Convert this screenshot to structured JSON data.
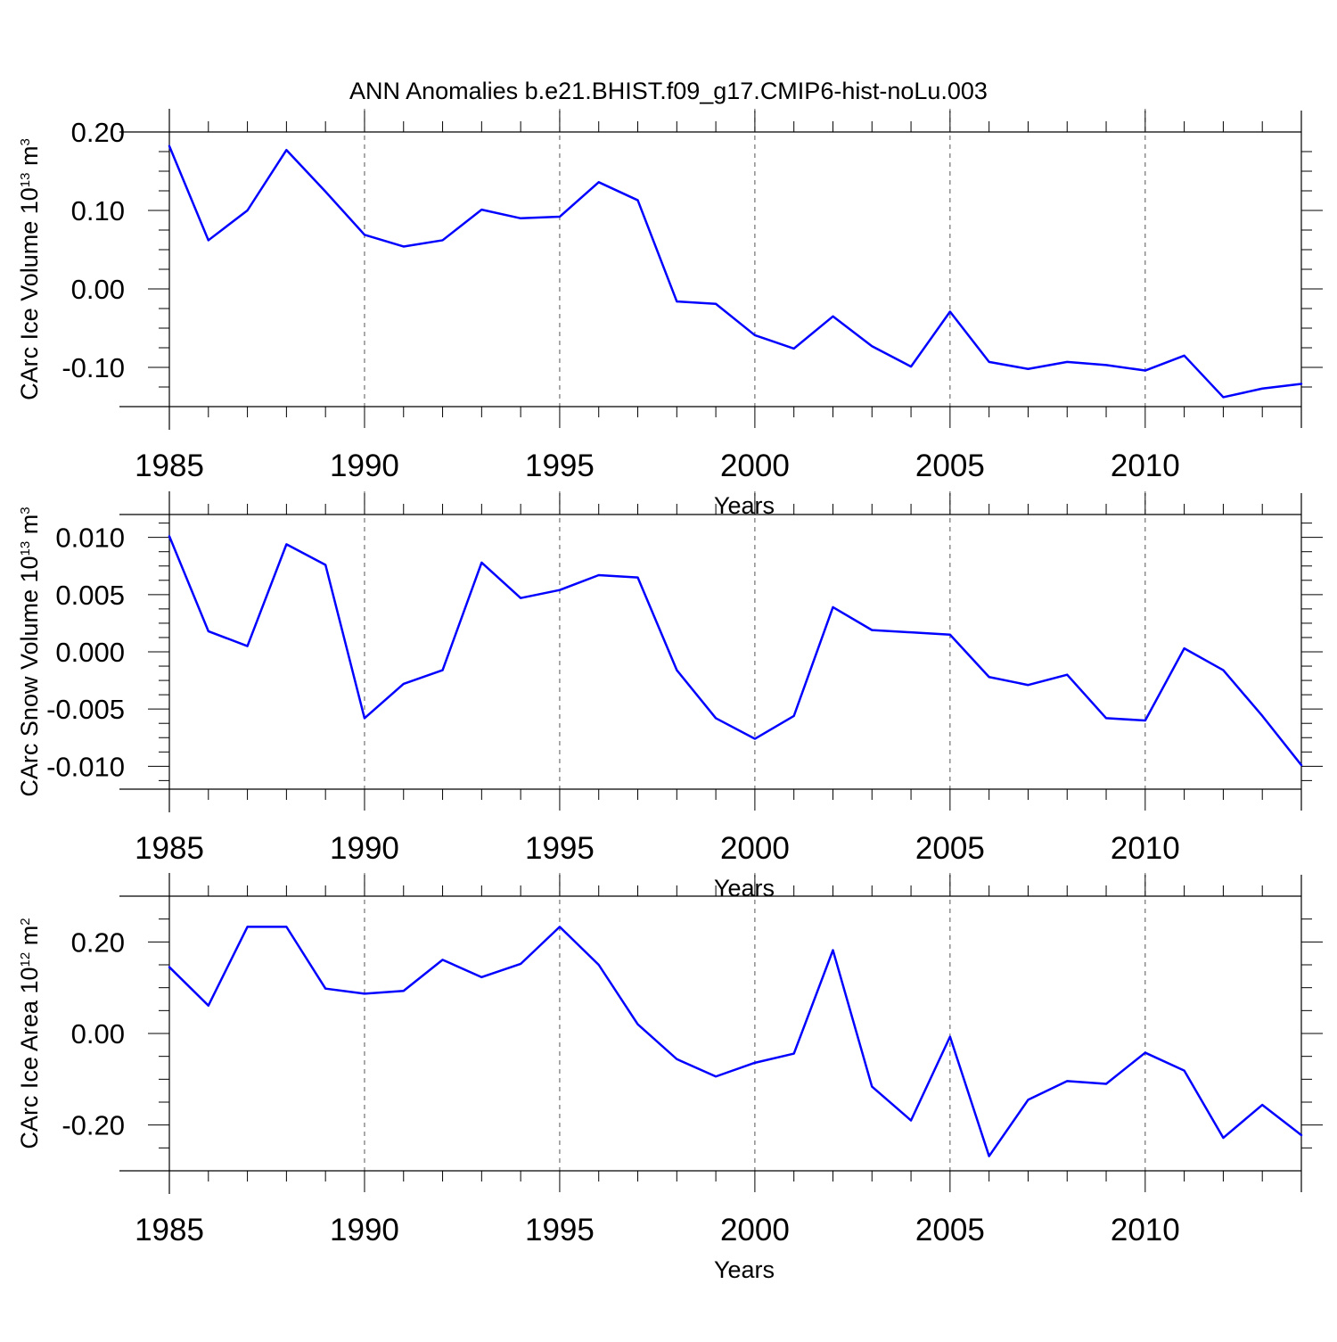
{
  "figure": {
    "title": "ANN Anomalies b.e21.BHIST.f09_g17.CMIP6-hist-noLu.003",
    "line_color": "#0000ff"
  },
  "chart_data": [
    {
      "type": "line",
      "title": "",
      "xlabel": "Years",
      "ylabel": {
        "prefix": "CArc Ice Volume 10",
        "exponent": "13",
        "unit": " m",
        "unit_exponent": "3"
      },
      "xlim": [
        1985,
        2014
      ],
      "ylim": [
        -0.15,
        0.2
      ],
      "x_ticks": [
        1985,
        1990,
        1995,
        2000,
        2005,
        2010
      ],
      "x_tick_labels": [
        "1985",
        "1990",
        "1995",
        "2000",
        "2005",
        "2010"
      ],
      "y_ticks": [
        0.2,
        0.1,
        0.0,
        -0.1
      ],
      "y_tick_labels": [
        "0.20",
        "0.10",
        "0.00",
        "-0.10"
      ],
      "x": [
        1985,
        1986,
        1987,
        1988,
        1989,
        1990,
        1991,
        1992,
        1993,
        1994,
        1995,
        1996,
        1997,
        1998,
        1999,
        2000,
        2001,
        2002,
        2003,
        2004,
        2005,
        2006,
        2007,
        2008,
        2009,
        2010,
        2011,
        2012,
        2013,
        2014
      ],
      "series": [
        {
          "name": "CArc Ice Volume",
          "values": [
            0.182,
            0.062,
            0.1,
            0.177,
            0.124,
            0.069,
            0.054,
            0.062,
            0.101,
            0.09,
            0.092,
            0.136,
            0.113,
            -0.016,
            -0.019,
            -0.059,
            -0.076,
            -0.035,
            -0.073,
            -0.099,
            -0.029,
            -0.093,
            -0.102,
            -0.093,
            -0.097,
            -0.104,
            -0.085,
            -0.138,
            -0.127,
            -0.121
          ]
        }
      ]
    },
    {
      "type": "line",
      "title": "",
      "xlabel": "Years",
      "ylabel": {
        "prefix": "CArc Snow Volume 10",
        "exponent": "13",
        "unit": " m",
        "unit_exponent": "3"
      },
      "xlim": [
        1985,
        2014
      ],
      "ylim": [
        -0.012,
        0.012
      ],
      "x_ticks": [
        1985,
        1990,
        1995,
        2000,
        2005,
        2010
      ],
      "x_tick_labels": [
        "1985",
        "1990",
        "1995",
        "2000",
        "2005",
        "2010"
      ],
      "y_ticks": [
        0.01,
        0.005,
        0.0,
        -0.005,
        -0.01
      ],
      "y_tick_labels": [
        "0.010",
        "0.005",
        "0.000",
        "-0.005",
        "-0.010"
      ],
      "x": [
        1985,
        1986,
        1987,
        1988,
        1989,
        1990,
        1991,
        1992,
        1993,
        1994,
        1995,
        1996,
        1997,
        1998,
        1999,
        2000,
        2001,
        2002,
        2003,
        2004,
        2005,
        2006,
        2007,
        2008,
        2009,
        2010,
        2011,
        2012,
        2013,
        2014
      ],
      "series": [
        {
          "name": "CArc Snow Volume",
          "values": [
            0.0101,
            0.0018,
            0.0005,
            0.0094,
            0.0076,
            -0.0058,
            -0.0028,
            -0.0016,
            0.0078,
            0.0047,
            0.0054,
            0.0067,
            0.0065,
            -0.0016,
            -0.0058,
            -0.0076,
            -0.0056,
            0.0039,
            0.0019,
            0.0017,
            0.0015,
            -0.0022,
            -0.0029,
            -0.002,
            -0.0058,
            -0.006,
            0.0003,
            -0.0016,
            -0.0056,
            -0.0099
          ]
        }
      ]
    },
    {
      "type": "line",
      "title": "",
      "xlabel": "Years",
      "ylabel": {
        "prefix": "CArc Ice Area 10",
        "exponent": "12",
        "unit": " m",
        "unit_exponent": "2"
      },
      "xlim": [
        1985,
        2014
      ],
      "ylim": [
        -0.3,
        0.3
      ],
      "x_ticks": [
        1985,
        1990,
        1995,
        2000,
        2005,
        2010
      ],
      "x_tick_labels": [
        "1985",
        "1990",
        "1995",
        "2000",
        "2005",
        "2010"
      ],
      "y_ticks": [
        0.2,
        0.0,
        -0.2
      ],
      "y_tick_labels": [
        "0.20",
        "0.00",
        "-0.20"
      ],
      "x": [
        1985,
        1986,
        1987,
        1988,
        1989,
        1990,
        1991,
        1992,
        1993,
        1994,
        1995,
        1996,
        1997,
        1998,
        1999,
        2000,
        2001,
        2002,
        2003,
        2004,
        2005,
        2006,
        2007,
        2008,
        2009,
        2010,
        2011,
        2012,
        2013,
        2014
      ],
      "series": [
        {
          "name": "CArc Ice Area",
          "values": [
            0.145,
            0.061,
            0.233,
            0.233,
            0.098,
            0.087,
            0.093,
            0.161,
            0.123,
            0.152,
            0.233,
            0.15,
            0.02,
            -0.056,
            -0.094,
            -0.064,
            -0.044,
            0.182,
            -0.116,
            -0.19,
            -0.007,
            -0.268,
            -0.145,
            -0.104,
            -0.11,
            -0.042,
            -0.081,
            -0.228,
            -0.156,
            -0.222
          ]
        }
      ]
    }
  ]
}
